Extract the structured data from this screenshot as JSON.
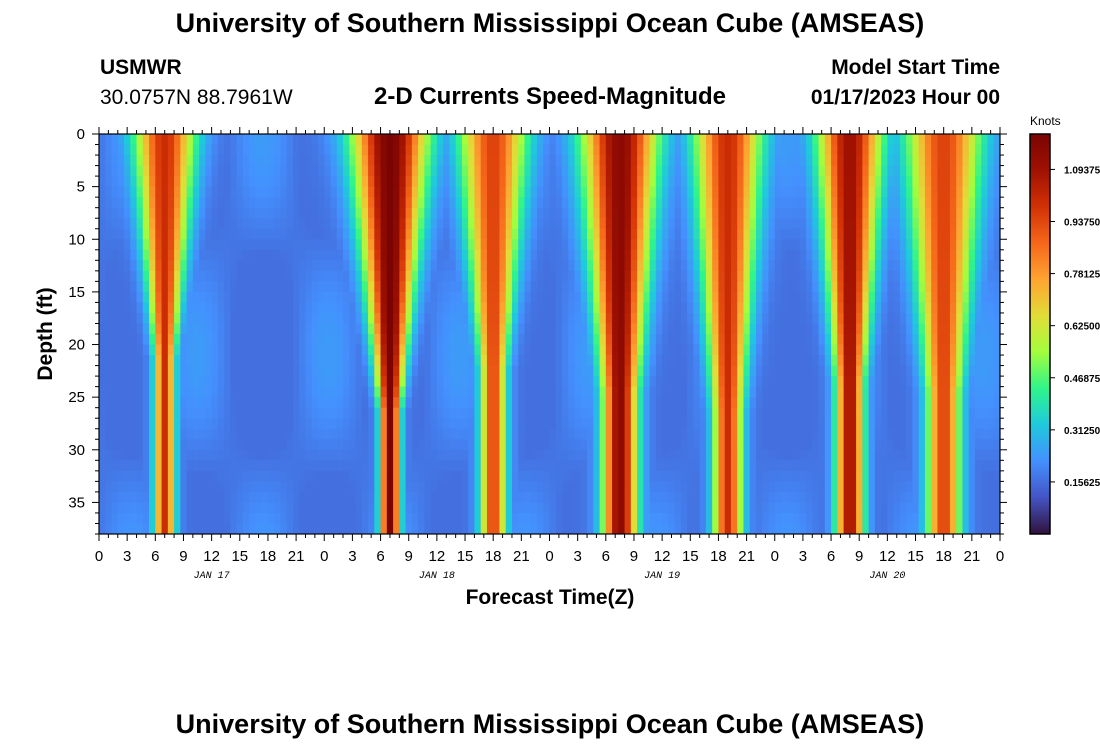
{
  "header": {
    "main_title": "University of Southern Mississippi Ocean Cube (AMSEAS)",
    "station": "USMWR",
    "coords": "30.0757N  88.7961W",
    "chart_title": "2-D Currents Speed-Magnitude",
    "start_label": "Model Start Time",
    "start_value": "01/17/2023 Hour 00"
  },
  "footer": {
    "title": "University of Southern Mississippi Ocean Cube (AMSEAS)"
  },
  "chart_data": {
    "type": "heatmap",
    "title": "2-D Currents Speed-Magnitude",
    "xlabel": "Forecast Time(Z)",
    "ylabel": "Depth (ft)",
    "x_range_hours": [
      0,
      96
    ],
    "y_range_ft": [
      0,
      38
    ],
    "x_tick_labels": [
      "0",
      "3",
      "6",
      "9",
      "12",
      "15",
      "18",
      "21",
      "0",
      "3",
      "6",
      "9",
      "12",
      "15",
      "18",
      "21",
      "0",
      "3",
      "6",
      "9",
      "12",
      "15",
      "18",
      "21",
      "0",
      "3",
      "6",
      "9",
      "12",
      "15",
      "18",
      "21",
      "0"
    ],
    "y_ticks": [
      0,
      5,
      10,
      15,
      20,
      25,
      30,
      35
    ],
    "day_labels": [
      {
        "label": "JAN 17",
        "hour": 12
      },
      {
        "label": "JAN 18",
        "hour": 36
      },
      {
        "label": "JAN 19",
        "hour": 60
      },
      {
        "label": "JAN 20",
        "hour": 84
      }
    ],
    "colorbar": {
      "unit": "Knots",
      "range": [
        0,
        1.2
      ],
      "tick_values": [
        0.15625,
        0.3125,
        0.46875,
        0.625,
        0.78125,
        0.9375,
        1.09375
      ],
      "tick_labels": [
        "0.15625",
        "0.31250",
        "0.46875",
        "0.62500",
        "0.78125",
        "0.93750",
        "1.09375"
      ],
      "colors": [
        "#30123b",
        "#4454c4",
        "#4490fe",
        "#1fc9dd",
        "#2ff58b",
        "#a3fd3d",
        "#e1dd37",
        "#fea431",
        "#f5671b",
        "#d23105",
        "#a01101",
        "#7a0403"
      ]
    },
    "peaks": [
      {
        "t_hours": 7,
        "speed": 1.0,
        "top_width": 2.6,
        "taper_depth": 26,
        "min_frac": 0.18
      },
      {
        "t_hours": 31,
        "speed": 1.2,
        "top_width": 3.4,
        "taper_depth": 30,
        "min_frac": 0.12
      },
      {
        "t_hours": 42,
        "speed": 0.95,
        "top_width": 3.0,
        "taper_depth": 30,
        "min_frac": 0.25
      },
      {
        "t_hours": 55.5,
        "speed": 1.15,
        "top_width": 3.4,
        "taper_depth": 38,
        "min_frac": 0.35
      },
      {
        "t_hours": 67,
        "speed": 1.0,
        "top_width": 3.0,
        "taper_depth": 38,
        "min_frac": 0.3
      },
      {
        "t_hours": 80,
        "speed": 1.1,
        "top_width": 2.8,
        "taper_depth": 34,
        "min_frac": 0.3
      },
      {
        "t_hours": 90,
        "speed": 0.95,
        "top_width": 3.4,
        "taper_depth": 38,
        "min_frac": 0.35
      }
    ]
  }
}
